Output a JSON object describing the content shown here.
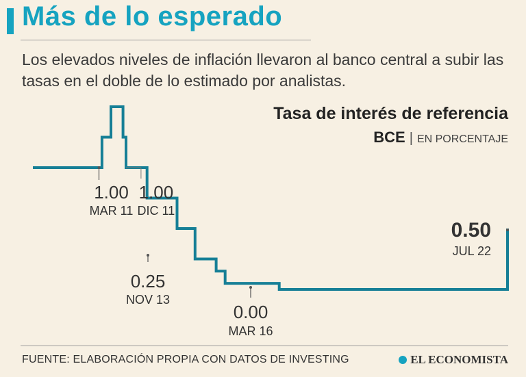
{
  "header": {
    "title": "Más de lo esperado",
    "subtitle": "Los elevados niveles de inflación llevaron al banco central a subir las tasas en el doble de lo estimado por analistas."
  },
  "chart_title": "Tasa de interés de referencia",
  "chart_subtitle": {
    "entity": "BCE",
    "unit": "EN PORCENTAJE"
  },
  "colors": {
    "accent": "#16a3c0",
    "line": "#167f96",
    "background": "#f7f0e3"
  },
  "chart_data": {
    "type": "line",
    "step": true,
    "title": "Tasa de interés de referencia",
    "subtitle": "BCE | EN PORCENTAJE",
    "series": [
      {
        "x": [
          "2009-05",
          "2011-03",
          "2011-04",
          "2011-07",
          "2011-11",
          "2011-12",
          "2012-07",
          "2013-05",
          "2013-11",
          "2014-06",
          "2014-09",
          "2016-03",
          "2022-07"
        ],
        "values": [
          1.0,
          1.0,
          1.25,
          1.5,
          1.25,
          1.0,
          0.75,
          0.5,
          0.25,
          0.15,
          0.05,
          0.0,
          0.5
        ]
      }
    ],
    "annotations": [
      {
        "value": "1.00",
        "date": "MAR 11"
      },
      {
        "value": "1.00",
        "date": "DIC 11"
      },
      {
        "value": "0.25",
        "date": "NOV 13"
      },
      {
        "value": "0.00",
        "date": "MAR 16"
      },
      {
        "value": "0.50",
        "date": "JUL 22"
      }
    ]
  },
  "footer": {
    "source": "FUENTE: ELABORACIÓN PROPIA CON DATOS DE INVESTING",
    "brand": "EL ECONOMISTA"
  }
}
